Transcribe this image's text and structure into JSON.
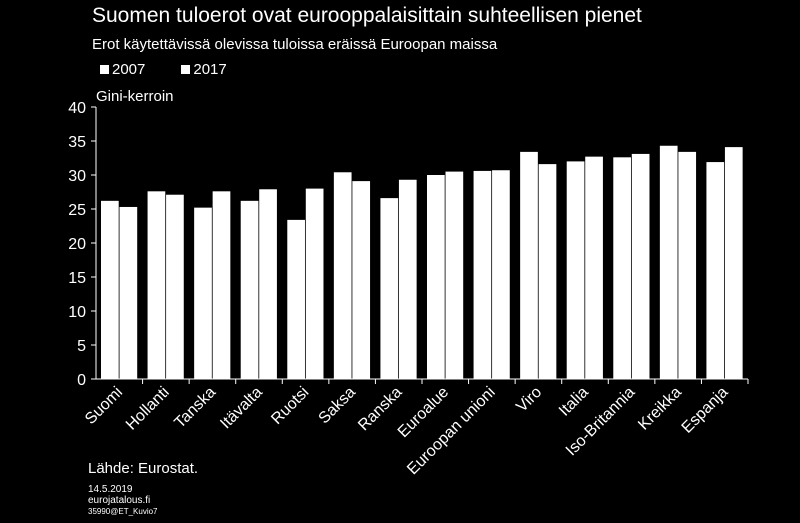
{
  "header": {
    "title": "Suomen tuloerot ovat eurooppalaisittain suhteellisen pienet",
    "subtitle": "Erot käytettävissä  olevissa tuloissa eräissä Euroopan maissa"
  },
  "legend": {
    "series_a": "2007",
    "series_b": "2017"
  },
  "footer": {
    "source": "Lähde: Eurostat.",
    "date": "14.5.2019",
    "site": "eurojatalous.fi",
    "code": "35990@ET_Kuvio7"
  },
  "colors": {
    "background": "#000000",
    "bars": "#ffffff",
    "axis": "#ffffff"
  },
  "chart_data": {
    "type": "bar",
    "ylabel": "Gini-kerroin",
    "ylim": [
      0,
      40
    ],
    "yticks": [
      0,
      5,
      10,
      15,
      20,
      25,
      30,
      35,
      40
    ],
    "grid": false,
    "legend_position": "top-left",
    "categories": [
      "Suomi",
      "Hollanti",
      "Tanska",
      "Itävalta",
      "Ruotsi",
      "Saksa",
      "Ranska",
      "Euroalue",
      "Euroopan unioni",
      "Viro",
      "Italia",
      "Iso-Britannia",
      "Kreikka",
      "Espanja"
    ],
    "series": [
      {
        "name": "2007",
        "values": [
          26.2,
          27.6,
          25.2,
          26.2,
          23.4,
          30.4,
          26.6,
          30.0,
          30.6,
          33.4,
          32.0,
          32.6,
          34.3,
          31.9
        ]
      },
      {
        "name": "2017",
        "values": [
          25.3,
          27.1,
          27.6,
          27.9,
          28.0,
          29.1,
          29.3,
          30.5,
          30.7,
          31.6,
          32.7,
          33.1,
          33.4,
          34.1
        ]
      }
    ]
  }
}
